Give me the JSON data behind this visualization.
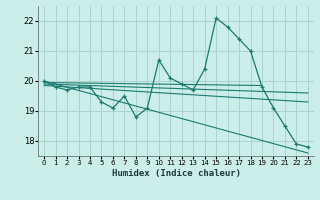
{
  "xlabel": "Humidex (Indice chaleur)",
  "background_color": "#cceee8",
  "line_color": "#1a7a6e",
  "grid_color": "#aad4ce",
  "xlim": [
    -0.5,
    23.5
  ],
  "ylim": [
    17.5,
    22.5
  ],
  "yticks": [
    18,
    19,
    20,
    21,
    22
  ],
  "xticks": [
    0,
    1,
    2,
    3,
    4,
    5,
    6,
    7,
    8,
    9,
    10,
    11,
    12,
    13,
    14,
    15,
    16,
    17,
    18,
    19,
    20,
    21,
    22,
    23
  ],
  "series1": [
    20.0,
    19.8,
    19.7,
    19.8,
    19.8,
    19.3,
    19.1,
    19.5,
    18.8,
    19.1,
    20.7,
    20.1,
    19.9,
    19.7,
    20.4,
    22.1,
    21.8,
    21.4,
    21.0,
    19.8,
    19.1,
    18.5,
    17.9,
    17.8
  ],
  "trend1_x": [
    0,
    19
  ],
  "trend1_y": [
    19.95,
    19.85
  ],
  "trend2_x": [
    0,
    23
  ],
  "trend2_y": [
    19.9,
    19.6
  ],
  "trend3_x": [
    0,
    23
  ],
  "trend3_y": [
    19.85,
    19.3
  ],
  "trend4_x": [
    0,
    23
  ],
  "trend4_y": [
    20.0,
    17.6
  ]
}
